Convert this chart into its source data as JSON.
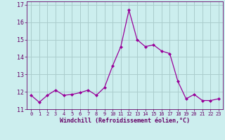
{
  "x": [
    0,
    1,
    2,
    3,
    4,
    5,
    6,
    7,
    8,
    9,
    10,
    11,
    12,
    13,
    14,
    15,
    16,
    17,
    18,
    19,
    20,
    21,
    22,
    23
  ],
  "y": [
    11.8,
    11.4,
    11.8,
    12.1,
    11.8,
    11.85,
    11.95,
    12.1,
    11.8,
    12.25,
    13.5,
    14.6,
    16.7,
    15.0,
    14.6,
    14.7,
    14.35,
    14.2,
    12.6,
    11.6,
    11.85,
    11.5,
    11.5,
    11.6
  ],
  "line_color": "#990099",
  "marker": "D",
  "marker_size": 2.0,
  "bg_color": "#cceeee",
  "grid_color": "#aacccc",
  "xlabel": "Windchill (Refroidissement éolien,°C)",
  "xlabel_color": "#660066",
  "tick_color": "#660066",
  "ylim": [
    11.0,
    17.2
  ],
  "xlim": [
    -0.5,
    23.5
  ],
  "yticks": [
    11,
    12,
    13,
    14,
    15,
    16,
    17
  ],
  "xticks": [
    0,
    1,
    2,
    3,
    4,
    5,
    6,
    7,
    8,
    9,
    10,
    11,
    12,
    13,
    14,
    15,
    16,
    17,
    18,
    19,
    20,
    21,
    22,
    23
  ]
}
